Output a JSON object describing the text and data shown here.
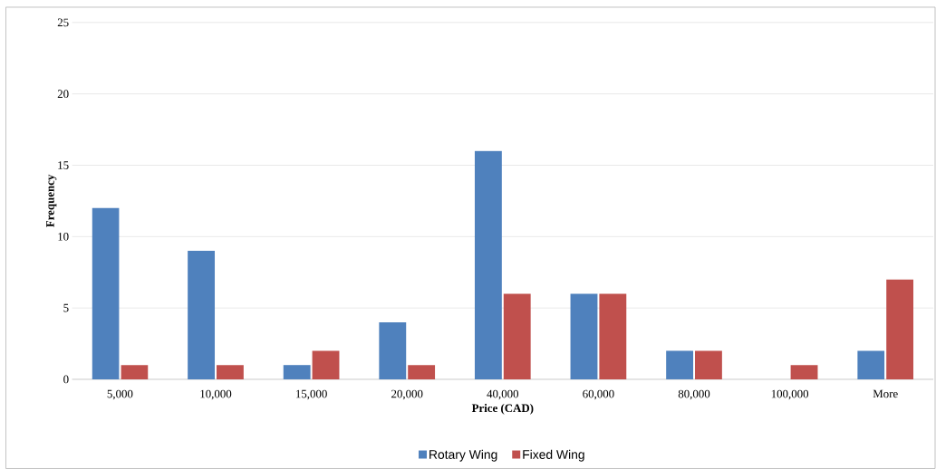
{
  "chart_data": {
    "type": "bar",
    "xlabel": "Price (CAD)",
    "ylabel": "Frequency",
    "categories": [
      "5,000",
      "10,000",
      "15,000",
      "20,000",
      "40,000",
      "60,000",
      "80,000",
      "100,000",
      "More"
    ],
    "series": [
      {
        "name": "Rotary Wing",
        "color": "#4f81bd",
        "values": [
          12,
          9,
          1,
          4,
          16,
          6,
          2,
          0,
          2
        ]
      },
      {
        "name": "Fixed Wing",
        "color": "#c0504d",
        "values": [
          1,
          1,
          2,
          1,
          6,
          6,
          2,
          1,
          7
        ]
      }
    ],
    "ylim": [
      0,
      25
    ],
    "yticks": [
      0,
      5,
      10,
      15,
      20,
      25
    ],
    "grid": "y",
    "legend": "bottom"
  }
}
